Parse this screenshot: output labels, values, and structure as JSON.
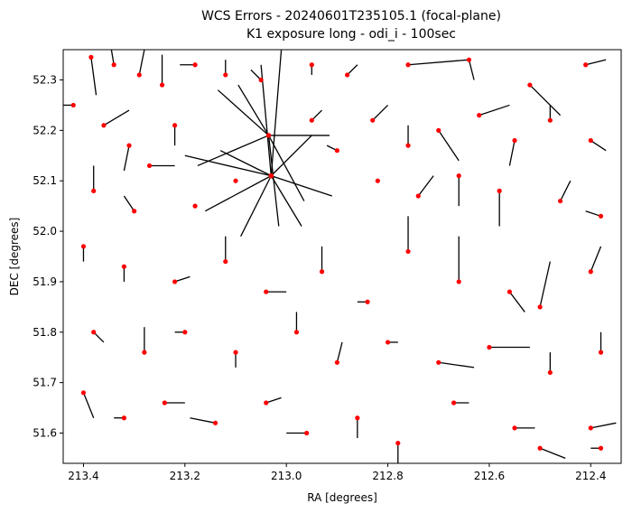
{
  "chart_data": {
    "type": "scatter",
    "title_line1": "WCS Errors - 20240601T235105.1 (focal-plane)",
    "title_line2": "K1 exposure long - odi_i - 100sec",
    "xlabel": "RA [degrees]",
    "ylabel": "DEC [degrees]",
    "x_ticks": [
      "213.4",
      "213.2",
      "213.0",
      "212.8",
      "212.6",
      "212.4"
    ],
    "y_ticks": [
      "51.6",
      "51.7",
      "51.8",
      "51.9",
      "52.0",
      "52.1",
      "52.2",
      "52.3"
    ],
    "x_tick_values": [
      213.4,
      213.2,
      213.0,
      212.8,
      212.6,
      212.4
    ],
    "y_tick_values": [
      51.6,
      51.7,
      51.8,
      51.9,
      52.0,
      52.1,
      52.2,
      52.3
    ],
    "xlim": [
      213.44,
      212.34
    ],
    "ylim": [
      51.54,
      52.36
    ],
    "x_inverted": true,
    "grid": false,
    "point_color": "#ff0000",
    "error_line_color": "#000000",
    "note": "Sources (red dots) with WCS error vectors (black lines); dense cluster of long vectors near RA 213.03, DEC 52.1-52.2.",
    "sources": [
      {
        "ra": 213.385,
        "dec": 52.345,
        "dra": -0.01,
        "ddec": -0.075
      },
      {
        "ra": 213.34,
        "dec": 52.33,
        "dra": 0.005,
        "ddec": 0.05
      },
      {
        "ra": 213.29,
        "dec": 52.31,
        "dra": -0.01,
        "ddec": 0.07
      },
      {
        "ra": 213.245,
        "dec": 52.29,
        "dra": 0.0,
        "ddec": 0.06
      },
      {
        "ra": 213.18,
        "dec": 52.33,
        "dra": 0.03,
        "ddec": 0.0
      },
      {
        "ra": 213.12,
        "dec": 52.31,
        "dra": 0.0,
        "ddec": 0.03
      },
      {
        "ra": 213.05,
        "dec": 52.3,
        "dra": 0.02,
        "ddec": 0.02
      },
      {
        "ra": 212.95,
        "dec": 52.33,
        "dra": 0.0,
        "ddec": -0.02
      },
      {
        "ra": 212.88,
        "dec": 52.31,
        "dra": -0.02,
        "ddec": 0.02
      },
      {
        "ra": 212.76,
        "dec": 52.33,
        "dra": -0.12,
        "ddec": 0.01
      },
      {
        "ra": 212.64,
        "dec": 52.34,
        "dra": -0.01,
        "ddec": -0.04
      },
      {
        "ra": 212.52,
        "dec": 52.29,
        "dra": -0.06,
        "ddec": -0.06
      },
      {
        "ra": 212.41,
        "dec": 52.33,
        "dra": -0.04,
        "ddec": 0.01
      },
      {
        "ra": 213.42,
        "dec": 52.25,
        "dra": 0.14,
        "ddec": 0.0
      },
      {
        "ra": 213.36,
        "dec": 52.21,
        "dra": -0.05,
        "ddec": 0.03
      },
      {
        "ra": 213.31,
        "dec": 52.17,
        "dra": 0.01,
        "ddec": -0.05
      },
      {
        "ra": 213.22,
        "dec": 52.21,
        "dra": 0.0,
        "ddec": -0.04
      },
      {
        "ra": 213.27,
        "dec": 52.13,
        "dra": -0.05,
        "ddec": 0.0
      },
      {
        "ra": 213.38,
        "dec": 52.08,
        "dra": 0.0,
        "ddec": 0.05
      },
      {
        "ra": 213.3,
        "dec": 52.04,
        "dra": 0.02,
        "ddec": 0.03
      },
      {
        "ra": 213.18,
        "dec": 52.05,
        "dra": 0.0,
        "ddec": 0.0
      },
      {
        "ra": 213.1,
        "dec": 52.1,
        "dra": 0.0,
        "ddec": 0.0
      },
      {
        "ra": 213.035,
        "dec": 52.19,
        "dra": 0.06,
        "ddec": 0.1
      },
      {
        "ra": 213.035,
        "dec": 52.19,
        "dra": -0.07,
        "ddec": -0.13
      },
      {
        "ra": 213.035,
        "dec": 52.19,
        "dra": 0.1,
        "ddec": 0.09
      },
      {
        "ra": 213.035,
        "dec": 52.19,
        "dra": -0.02,
        "ddec": -0.18
      },
      {
        "ra": 213.035,
        "dec": 52.19,
        "dra": -0.12,
        "ddec": 0.0
      },
      {
        "ra": 213.035,
        "dec": 52.19,
        "dra": 0.14,
        "ddec": -0.06
      },
      {
        "ra": 213.03,
        "dec": 52.11,
        "dra": 0.1,
        "ddec": 0.05
      },
      {
        "ra": 213.03,
        "dec": 52.11,
        "dra": -0.12,
        "ddec": -0.04
      },
      {
        "ra": 213.03,
        "dec": 52.11,
        "dra": 0.13,
        "ddec": -0.07
      },
      {
        "ra": 213.03,
        "dec": 52.11,
        "dra": -0.08,
        "ddec": 0.08
      },
      {
        "ra": 213.03,
        "dec": 52.11,
        "dra": 0.06,
        "ddec": -0.12
      },
      {
        "ra": 213.03,
        "dec": 52.11,
        "dra": -0.06,
        "ddec": -0.1
      },
      {
        "ra": 213.03,
        "dec": 52.11,
        "dra": 0.17,
        "ddec": 0.04
      },
      {
        "ra": 213.03,
        "dec": 52.11,
        "dra": 0.02,
        "ddec": 0.22
      },
      {
        "ra": 213.03,
        "dec": 52.11,
        "dra": -0.02,
        "ddec": 0.25
      },
      {
        "ra": 212.95,
        "dec": 52.22,
        "dra": -0.02,
        "ddec": 0.02
      },
      {
        "ra": 212.9,
        "dec": 52.16,
        "dra": 0.02,
        "ddec": 0.01
      },
      {
        "ra": 212.83,
        "dec": 52.22,
        "dra": -0.03,
        "ddec": 0.03
      },
      {
        "ra": 212.76,
        "dec": 52.17,
        "dra": 0.0,
        "ddec": 0.04
      },
      {
        "ra": 212.7,
        "dec": 52.2,
        "dra": -0.04,
        "ddec": -0.06
      },
      {
        "ra": 212.62,
        "dec": 52.23,
        "dra": -0.06,
        "ddec": 0.02
      },
      {
        "ra": 212.55,
        "dec": 52.18,
        "dra": 0.01,
        "ddec": -0.05
      },
      {
        "ra": 212.48,
        "dec": 52.22,
        "dra": 0.0,
        "ddec": 0.03
      },
      {
        "ra": 212.4,
        "dec": 52.18,
        "dra": -0.03,
        "ddec": -0.02
      },
      {
        "ra": 212.82,
        "dec": 52.1,
        "dra": 0.0,
        "ddec": 0.0
      },
      {
        "ra": 212.74,
        "dec": 52.07,
        "dra": -0.03,
        "ddec": 0.04
      },
      {
        "ra": 212.66,
        "dec": 52.11,
        "dra": 0.0,
        "ddec": -0.06
      },
      {
        "ra": 212.58,
        "dec": 52.08,
        "dra": 0.0,
        "ddec": -0.07
      },
      {
        "ra": 212.46,
        "dec": 52.06,
        "dra": -0.02,
        "ddec": 0.04
      },
      {
        "ra": 212.38,
        "dec": 52.03,
        "dra": 0.03,
        "ddec": 0.01
      },
      {
        "ra": 213.4,
        "dec": 51.97,
        "dra": 0.0,
        "ddec": -0.03
      },
      {
        "ra": 213.32,
        "dec": 51.93,
        "dra": 0.0,
        "ddec": -0.03
      },
      {
        "ra": 213.22,
        "dec": 51.9,
        "dra": -0.03,
        "ddec": 0.01
      },
      {
        "ra": 213.12,
        "dec": 51.94,
        "dra": 0.0,
        "ddec": 0.05
      },
      {
        "ra": 213.04,
        "dec": 51.88,
        "dra": -0.04,
        "ddec": 0.0
      },
      {
        "ra": 212.93,
        "dec": 51.92,
        "dra": 0.0,
        "ddec": 0.05
      },
      {
        "ra": 212.84,
        "dec": 51.86,
        "dra": 0.02,
        "ddec": 0.0
      },
      {
        "ra": 212.76,
        "dec": 51.96,
        "dra": 0.0,
        "ddec": 0.07
      },
      {
        "ra": 212.66,
        "dec": 51.9,
        "dra": 0.0,
        "ddec": 0.09
      },
      {
        "ra": 212.56,
        "dec": 51.88,
        "dra": -0.03,
        "ddec": -0.04
      },
      {
        "ra": 212.5,
        "dec": 51.85,
        "dra": -0.02,
        "ddec": 0.09
      },
      {
        "ra": 212.4,
        "dec": 51.92,
        "dra": -0.02,
        "ddec": 0.05
      },
      {
        "ra": 213.38,
        "dec": 51.8,
        "dra": -0.02,
        "ddec": -0.02
      },
      {
        "ra": 213.28,
        "dec": 51.76,
        "dra": 0.0,
        "ddec": 0.05
      },
      {
        "ra": 213.2,
        "dec": 51.8,
        "dra": 0.02,
        "ddec": 0.0
      },
      {
        "ra": 213.1,
        "dec": 51.76,
        "dra": 0.0,
        "ddec": -0.03
      },
      {
        "ra": 212.98,
        "dec": 51.8,
        "dra": 0.0,
        "ddec": 0.04
      },
      {
        "ra": 212.9,
        "dec": 51.74,
        "dra": -0.01,
        "ddec": 0.04
      },
      {
        "ra": 212.8,
        "dec": 51.78,
        "dra": -0.02,
        "ddec": 0.0
      },
      {
        "ra": 212.7,
        "dec": 51.74,
        "dra": -0.07,
        "ddec": -0.01
      },
      {
        "ra": 212.6,
        "dec": 51.77,
        "dra": -0.08,
        "ddec": 0.0
      },
      {
        "ra": 212.48,
        "dec": 51.72,
        "dra": 0.0,
        "ddec": 0.04
      },
      {
        "ra": 212.38,
        "dec": 51.76,
        "dra": 0.0,
        "ddec": 0.04
      },
      {
        "ra": 213.4,
        "dec": 51.68,
        "dra": -0.02,
        "ddec": -0.05
      },
      {
        "ra": 213.32,
        "dec": 51.63,
        "dra": 0.02,
        "ddec": 0.0
      },
      {
        "ra": 213.24,
        "dec": 51.66,
        "dra": -0.04,
        "ddec": 0.0
      },
      {
        "ra": 213.14,
        "dec": 51.62,
        "dra": 0.05,
        "ddec": 0.01
      },
      {
        "ra": 213.04,
        "dec": 51.66,
        "dra": -0.03,
        "ddec": 0.01
      },
      {
        "ra": 212.96,
        "dec": 51.6,
        "dra": 0.04,
        "ddec": 0.0
      },
      {
        "ra": 212.86,
        "dec": 51.63,
        "dra": 0.0,
        "ddec": -0.04
      },
      {
        "ra": 212.78,
        "dec": 51.58,
        "dra": 0.0,
        "ddec": -0.05
      },
      {
        "ra": 212.67,
        "dec": 51.66,
        "dra": -0.03,
        "ddec": 0.0
      },
      {
        "ra": 212.55,
        "dec": 51.61,
        "dra": -0.04,
        "ddec": 0.0
      },
      {
        "ra": 212.5,
        "dec": 51.57,
        "dra": -0.05,
        "ddec": -0.02
      },
      {
        "ra": 212.4,
        "dec": 51.61,
        "dra": -0.05,
        "ddec": 0.01
      },
      {
        "ra": 212.38,
        "dec": 51.57,
        "dra": 0.02,
        "ddec": 0.0
      }
    ]
  }
}
